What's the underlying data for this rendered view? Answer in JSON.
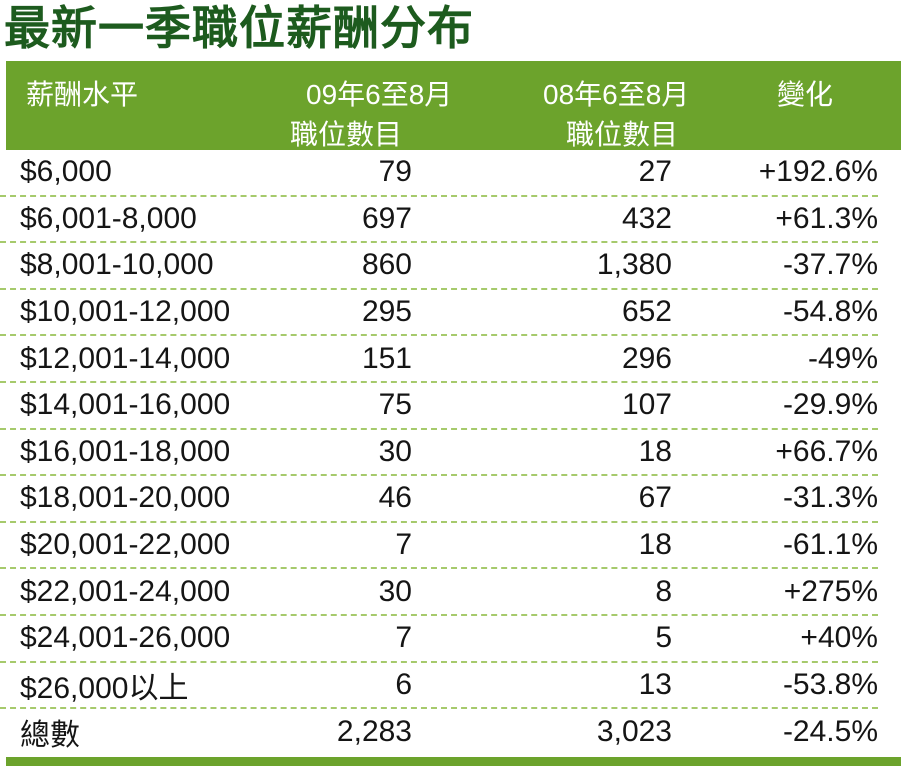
{
  "title": "最新一季職位薪酬分布",
  "colors": {
    "header_green": "#6ca32c",
    "title_green": "#1d5b1e",
    "divider_green": "#a6ca6c",
    "text": "#151515"
  },
  "table": {
    "headers": {
      "col1": "薪酬水平",
      "col2_line1": "09年6至8月",
      "col2_line2": "職位數目",
      "col3_line1": "08年6至8月",
      "col3_line2": "職位數目",
      "col4": "變化"
    },
    "rows": [
      {
        "level": "$6,000",
        "y2009": "79",
        "y2008": "27",
        "change": "+192.6%"
      },
      {
        "level": "$6,001-8,000",
        "y2009": "697",
        "y2008": "432",
        "change": "+61.3%"
      },
      {
        "level": "$8,001-10,000",
        "y2009": "860",
        "y2008": "1,380",
        "change": "-37.7%"
      },
      {
        "level": "$10,001-12,000",
        "y2009": "295",
        "y2008": "652",
        "change": "-54.8%"
      },
      {
        "level": "$12,001-14,000",
        "y2009": "151",
        "y2008": "296",
        "change": "-49%"
      },
      {
        "level": "$14,001-16,000",
        "y2009": "75",
        "y2008": "107",
        "change": "-29.9%"
      },
      {
        "level": "$16,001-18,000",
        "y2009": "30",
        "y2008": "18",
        "change": "+66.7%"
      },
      {
        "level": "$18,001-20,000",
        "y2009": "46",
        "y2008": "67",
        "change": "-31.3%"
      },
      {
        "level": "$20,001-22,000",
        "y2009": "7",
        "y2008": "18",
        "change": "-61.1%"
      },
      {
        "level": "$22,001-24,000",
        "y2009": "30",
        "y2008": "8",
        "change": "+275%"
      },
      {
        "level": "$24,001-26,000",
        "y2009": "7",
        "y2008": "5",
        "change": "+40%"
      },
      {
        "level": "$26,000以上",
        "y2009": "6",
        "y2008": "13",
        "change": "-53.8%"
      },
      {
        "level": "總數",
        "y2009": "2,283",
        "y2008": "3,023",
        "change": "-24.5%"
      }
    ]
  },
  "chart_data": {
    "type": "table",
    "title": "最新一季職位薪酬分布",
    "columns": [
      "薪酬水平",
      "09年6至8月職位數目",
      "08年6至8月職位數目",
      "變化"
    ],
    "rows": [
      [
        "$6,000",
        79,
        27,
        "+192.6%"
      ],
      [
        "$6,001-8,000",
        697,
        432,
        "+61.3%"
      ],
      [
        "$8,001-10,000",
        860,
        1380,
        "-37.7%"
      ],
      [
        "$10,001-12,000",
        295,
        652,
        "-54.8%"
      ],
      [
        "$12,001-14,000",
        151,
        296,
        "-49%"
      ],
      [
        "$14,001-16,000",
        75,
        107,
        "-29.9%"
      ],
      [
        "$16,001-18,000",
        30,
        18,
        "+66.7%"
      ],
      [
        "$18,001-20,000",
        46,
        67,
        "-31.3%"
      ],
      [
        "$20,001-22,000",
        7,
        18,
        "-61.1%"
      ],
      [
        "$22,001-24,000",
        30,
        8,
        "+275%"
      ],
      [
        "$24,001-26,000",
        7,
        5,
        "+40%"
      ],
      [
        "$26,000以上",
        6,
        13,
        "-53.8%"
      ],
      [
        "總數",
        2283,
        3023,
        "-24.5%"
      ]
    ]
  }
}
